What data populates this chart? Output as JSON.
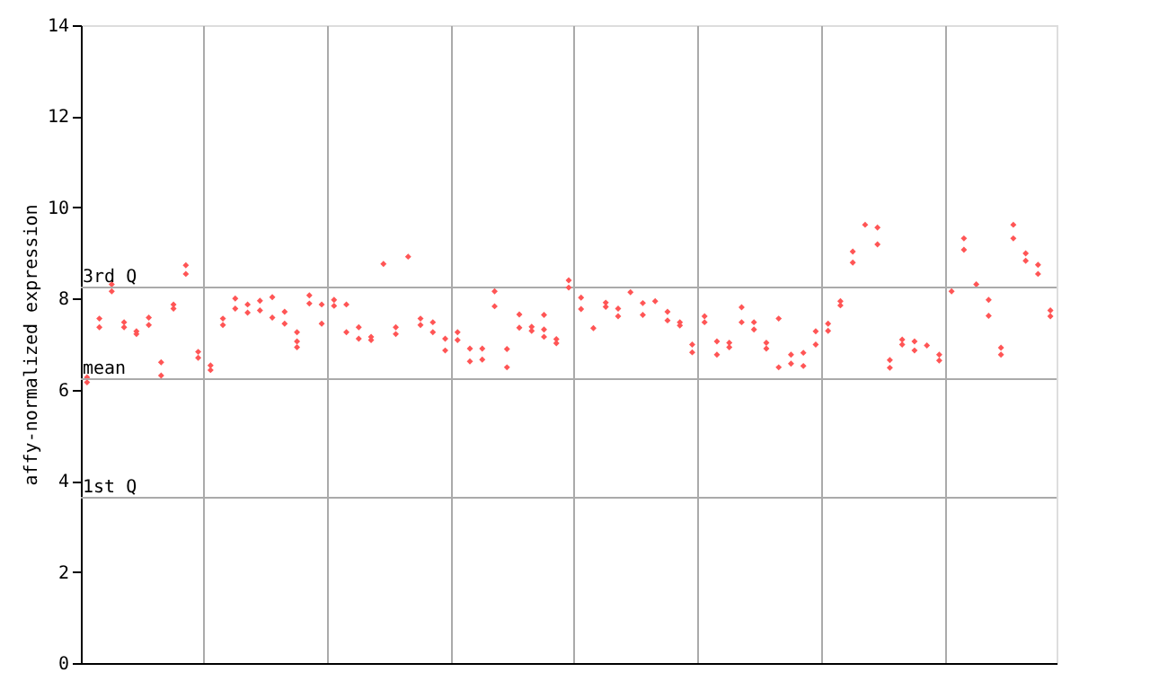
{
  "chart_data": {
    "type": "scatter",
    "ylabel": "affy-normalized expression",
    "categories": [
      null,
      null,
      null,
      null,
      null,
      null,
      null,
      null,
      null,
      null,
      null,
      null,
      null,
      null,
      null,
      null,
      null,
      null,
      null,
      null,
      null,
      null,
      null,
      null,
      null,
      null,
      null,
      null,
      null,
      null,
      null,
      null,
      null,
      null,
      null,
      null,
      null,
      null,
      null,
      null,
      null,
      null,
      null,
      null,
      null,
      null,
      null,
      null,
      null,
      null,
      null,
      null,
      null,
      null,
      null,
      null,
      null,
      null,
      null,
      null,
      null,
      null,
      null,
      null,
      null,
      null,
      null,
      null,
      null,
      null,
      null,
      null,
      null,
      null,
      null,
      null,
      null,
      null,
      null
    ],
    "ylim": [
      0,
      14
    ],
    "yticks": [
      0,
      2,
      4,
      6,
      8,
      10,
      12,
      14
    ],
    "tick_labels": "y",
    "grid": "x",
    "marker": "diamond",
    "ref_lines": [
      {
        "axis": "y",
        "value": 8.24,
        "label": "3rd Q",
        "color": "#aaaaaa"
      },
      {
        "axis": "y",
        "value": 6.23,
        "label": "mean",
        "color": "#aaaaaa"
      },
      {
        "axis": "y",
        "value": 3.63,
        "label": "1st Q",
        "color": "#aaaaaa"
      }
    ],
    "series": [
      {
        "color": "#ff5555",
        "values": [
          6.27,
          7.56,
          8.31,
          7.48,
          7.28,
          7.58,
          6.6,
          7.87,
          8.73,
          6.83,
          6.53,
          7.56,
          8.0,
          7.87,
          7.95,
          8.03,
          7.71,
          7.26,
          8.07,
          7.87,
          7.97,
          7.87,
          7.37,
          7.16,
          8.76,
          7.37,
          8.92,
          7.56,
          7.48,
          7.12,
          7.26,
          6.9,
          6.9,
          8.16,
          6.89,
          7.65,
          7.38,
          7.64,
          7.11,
          8.4,
          8.02,
          7.35,
          7.91,
          7.78,
          8.14,
          7.9,
          7.94,
          7.71,
          7.48,
          6.99,
          7.61,
          7.06,
          7.03,
          7.81,
          7.48,
          7.03,
          7.56,
          6.77,
          6.81,
          7.28,
          7.45,
          7.94,
          9.03,
          9.62,
          9.56,
          6.65,
          7.1,
          7.06,
          6.97,
          6.77,
          8.16,
          9.32,
          8.31,
          7.97,
          6.92,
          9.62,
          8.99,
          8.74,
          7.74
        ]
      },
      {
        "color": "#ff5555",
        "values": [
          6.16,
          7.37,
          8.16,
          7.37,
          7.22,
          7.42,
          6.31,
          7.78,
          8.54,
          6.7,
          6.43,
          7.42,
          7.78,
          7.69,
          7.74,
          7.58,
          7.45,
          7.06,
          7.89,
          7.45,
          7.84,
          7.26,
          7.12,
          7.09,
          null,
          7.22,
          null,
          7.42,
          7.26,
          6.86,
          7.09,
          6.62,
          6.66,
          7.83,
          6.49,
          7.36,
          7.29,
          7.32,
          7.02,
          8.24,
          7.77,
          null,
          7.82,
          7.61,
          null,
          7.64,
          null,
          7.52,
          7.41,
          6.82,
          7.48,
          6.77,
          6.93,
          7.48,
          7.32,
          6.9,
          6.49,
          6.57,
          6.52,
          6.99,
          7.29,
          7.85,
          8.79,
          null,
          9.19,
          6.48,
          6.99,
          6.86,
          null,
          6.64,
          null,
          9.07,
          null,
          7.62,
          6.77,
          9.32,
          8.83,
          8.54,
          7.61
        ]
      },
      {
        "color": "#ff5555",
        "values": [
          null,
          null,
          null,
          null,
          null,
          null,
          null,
          null,
          null,
          null,
          null,
          null,
          null,
          null,
          null,
          null,
          null,
          6.93,
          null,
          null,
          null,
          null,
          null,
          null,
          null,
          null,
          null,
          null,
          null,
          null,
          null,
          null,
          null,
          null,
          null,
          null,
          null,
          7.16,
          null,
          null,
          null,
          null,
          null,
          null,
          null,
          null,
          null,
          null,
          null,
          null,
          null,
          null,
          null,
          null,
          null,
          null,
          null,
          null,
          null,
          null,
          null,
          null,
          null,
          null,
          null,
          null,
          null,
          null,
          null,
          null,
          null,
          null,
          null,
          null,
          null,
          null,
          null,
          null,
          null
        ]
      }
    ]
  }
}
